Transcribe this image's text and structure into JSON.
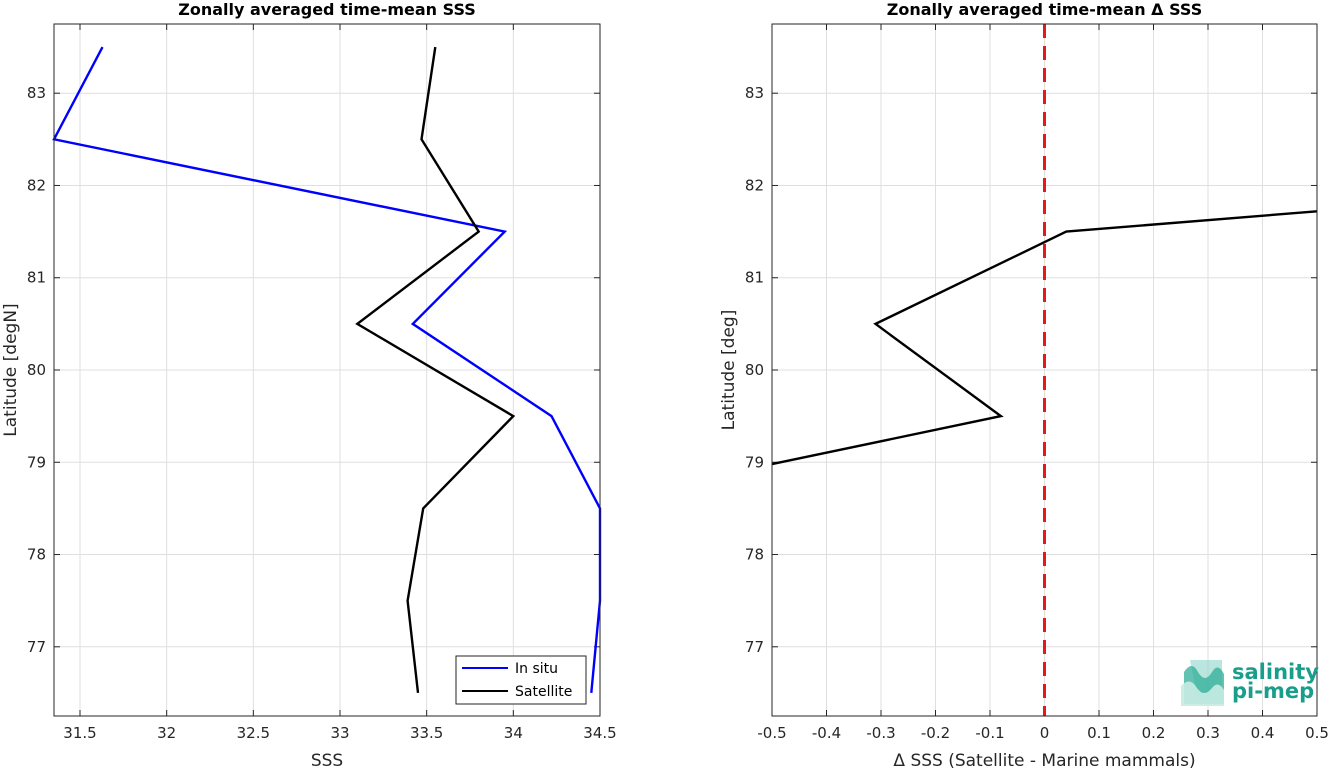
{
  "chart_data": [
    {
      "type": "line",
      "title": "Zonally averaged time-mean SSS",
      "xlabel": "SSS",
      "ylabel": "Latitude [degN]",
      "xlim": [
        31.35,
        34.5
      ],
      "ylim": [
        76.25,
        83.75
      ],
      "xticks": [
        31.5,
        32,
        32.5,
        33,
        33.5,
        34,
        34.5
      ],
      "xtick_labels": [
        "31.5",
        "32",
        "32.5",
        "33",
        "33.5",
        "34",
        "34.5"
      ],
      "yticks": [
        77,
        78,
        79,
        80,
        81,
        82,
        83
      ],
      "ytick_labels": [
        "77",
        "78",
        "79",
        "80",
        "81",
        "82",
        "83"
      ],
      "grid": true,
      "legend": {
        "location": "bottom-right",
        "entries": [
          "In situ",
          "Satellite"
        ]
      },
      "series": [
        {
          "name": "In situ",
          "color": "#0000ff",
          "points": [
            [
              31.63,
              83.5
            ],
            [
              31.35,
              82.5
            ],
            [
              33.95,
              81.5
            ],
            [
              33.42,
              80.5
            ],
            [
              34.22,
              79.5
            ],
            [
              34.5,
              78.5
            ],
            [
              34.5,
              77.5
            ],
            [
              34.45,
              76.5
            ]
          ]
        },
        {
          "name": "Satellite",
          "color": "#000000",
          "points": [
            [
              33.55,
              83.5
            ],
            [
              33.47,
              82.5
            ],
            [
              33.8,
              81.5
            ],
            [
              33.1,
              80.5
            ],
            [
              34.0,
              79.5
            ],
            [
              33.48,
              78.5
            ],
            [
              33.39,
              77.5
            ],
            [
              33.45,
              76.5
            ]
          ]
        }
      ]
    },
    {
      "type": "line",
      "title": "Zonally averaged time-mean Δ SSS",
      "xlabel": "Δ SSS (Satellite - Marine mammals)",
      "ylabel": "Latitude [deg]",
      "xlim": [
        -0.5,
        0.5
      ],
      "ylim": [
        76.25,
        83.75
      ],
      "xticks": [
        -0.5,
        -0.4,
        -0.3,
        -0.2,
        -0.1,
        0,
        0.1,
        0.2,
        0.3,
        0.4,
        0.5
      ],
      "xtick_labels": [
        "-0.5",
        "-0.4",
        "-0.3",
        "-0.2",
        "-0.1",
        "0",
        "0.1",
        "0.2",
        "0.3",
        "0.4",
        "0.5"
      ],
      "yticks": [
        77,
        78,
        79,
        80,
        81,
        82,
        83
      ],
      "ytick_labels": [
        "77",
        "78",
        "79",
        "80",
        "81",
        "82",
        "83"
      ],
      "grid": true,
      "reference_line": {
        "x": 0,
        "color": "#e21a1a",
        "style": "dashed"
      },
      "series": [
        {
          "color": "#000000",
          "points": [
            [
              0.5,
              81.72
            ],
            [
              0.04,
              81.5
            ],
            [
              -0.31,
              80.5
            ],
            [
              -0.08,
              79.5
            ],
            [
              -0.5,
              78.98
            ]
          ]
        }
      ]
    }
  ],
  "logo": {
    "line1": "salinity",
    "line2": "pi-mep",
    "color": "#1a9e8c"
  }
}
